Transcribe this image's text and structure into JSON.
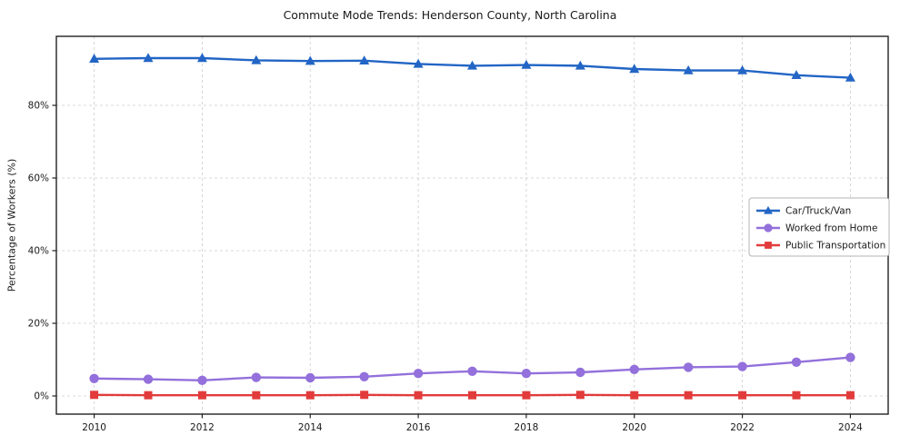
{
  "chart_data": {
    "type": "line",
    "title": "Commute Mode Trends: Henderson County, North Carolina",
    "ylabel": "Percentage of Workers (%)",
    "xlabel": "",
    "x": [
      2010,
      2011,
      2012,
      2013,
      2014,
      2015,
      2016,
      2017,
      2018,
      2019,
      2020,
      2021,
      2022,
      2023,
      2024
    ],
    "series": [
      {
        "name": "Car/Truck/Van",
        "color": "#2265c5",
        "marker": "triangle",
        "values": [
          92.8,
          93.0,
          93.0,
          92.4,
          92.2,
          92.3,
          91.4,
          90.9,
          91.1,
          90.9,
          90.0,
          89.6,
          89.6,
          88.3,
          87.6
        ]
      },
      {
        "name": "Worked from Home",
        "color": "#9370db",
        "marker": "circle",
        "values": [
          4.8,
          4.6,
          4.3,
          5.1,
          5.0,
          5.3,
          6.2,
          6.8,
          6.2,
          6.5,
          7.3,
          7.9,
          8.1,
          9.3,
          10.6
        ]
      },
      {
        "name": "Public Transportation",
        "color": "#e23b3b",
        "marker": "square",
        "values": [
          0.3,
          0.2,
          0.2,
          0.2,
          0.2,
          0.3,
          0.2,
          0.2,
          0.2,
          0.3,
          0.2,
          0.2,
          0.2,
          0.2,
          0.2
        ]
      }
    ],
    "xticks": [
      2010,
      2012,
      2014,
      2016,
      2018,
      2020,
      2022,
      2024
    ],
    "yticks": [
      0,
      20,
      40,
      60,
      80
    ],
    "ytick_suffix": "%",
    "xlim": [
      2009.3,
      2024.7
    ],
    "ylim": [
      -5,
      99
    ],
    "grid": true,
    "grid_style": "dashed",
    "legend_position": "center-right",
    "axis_color": "#222222",
    "grid_color": "#cccccc"
  }
}
